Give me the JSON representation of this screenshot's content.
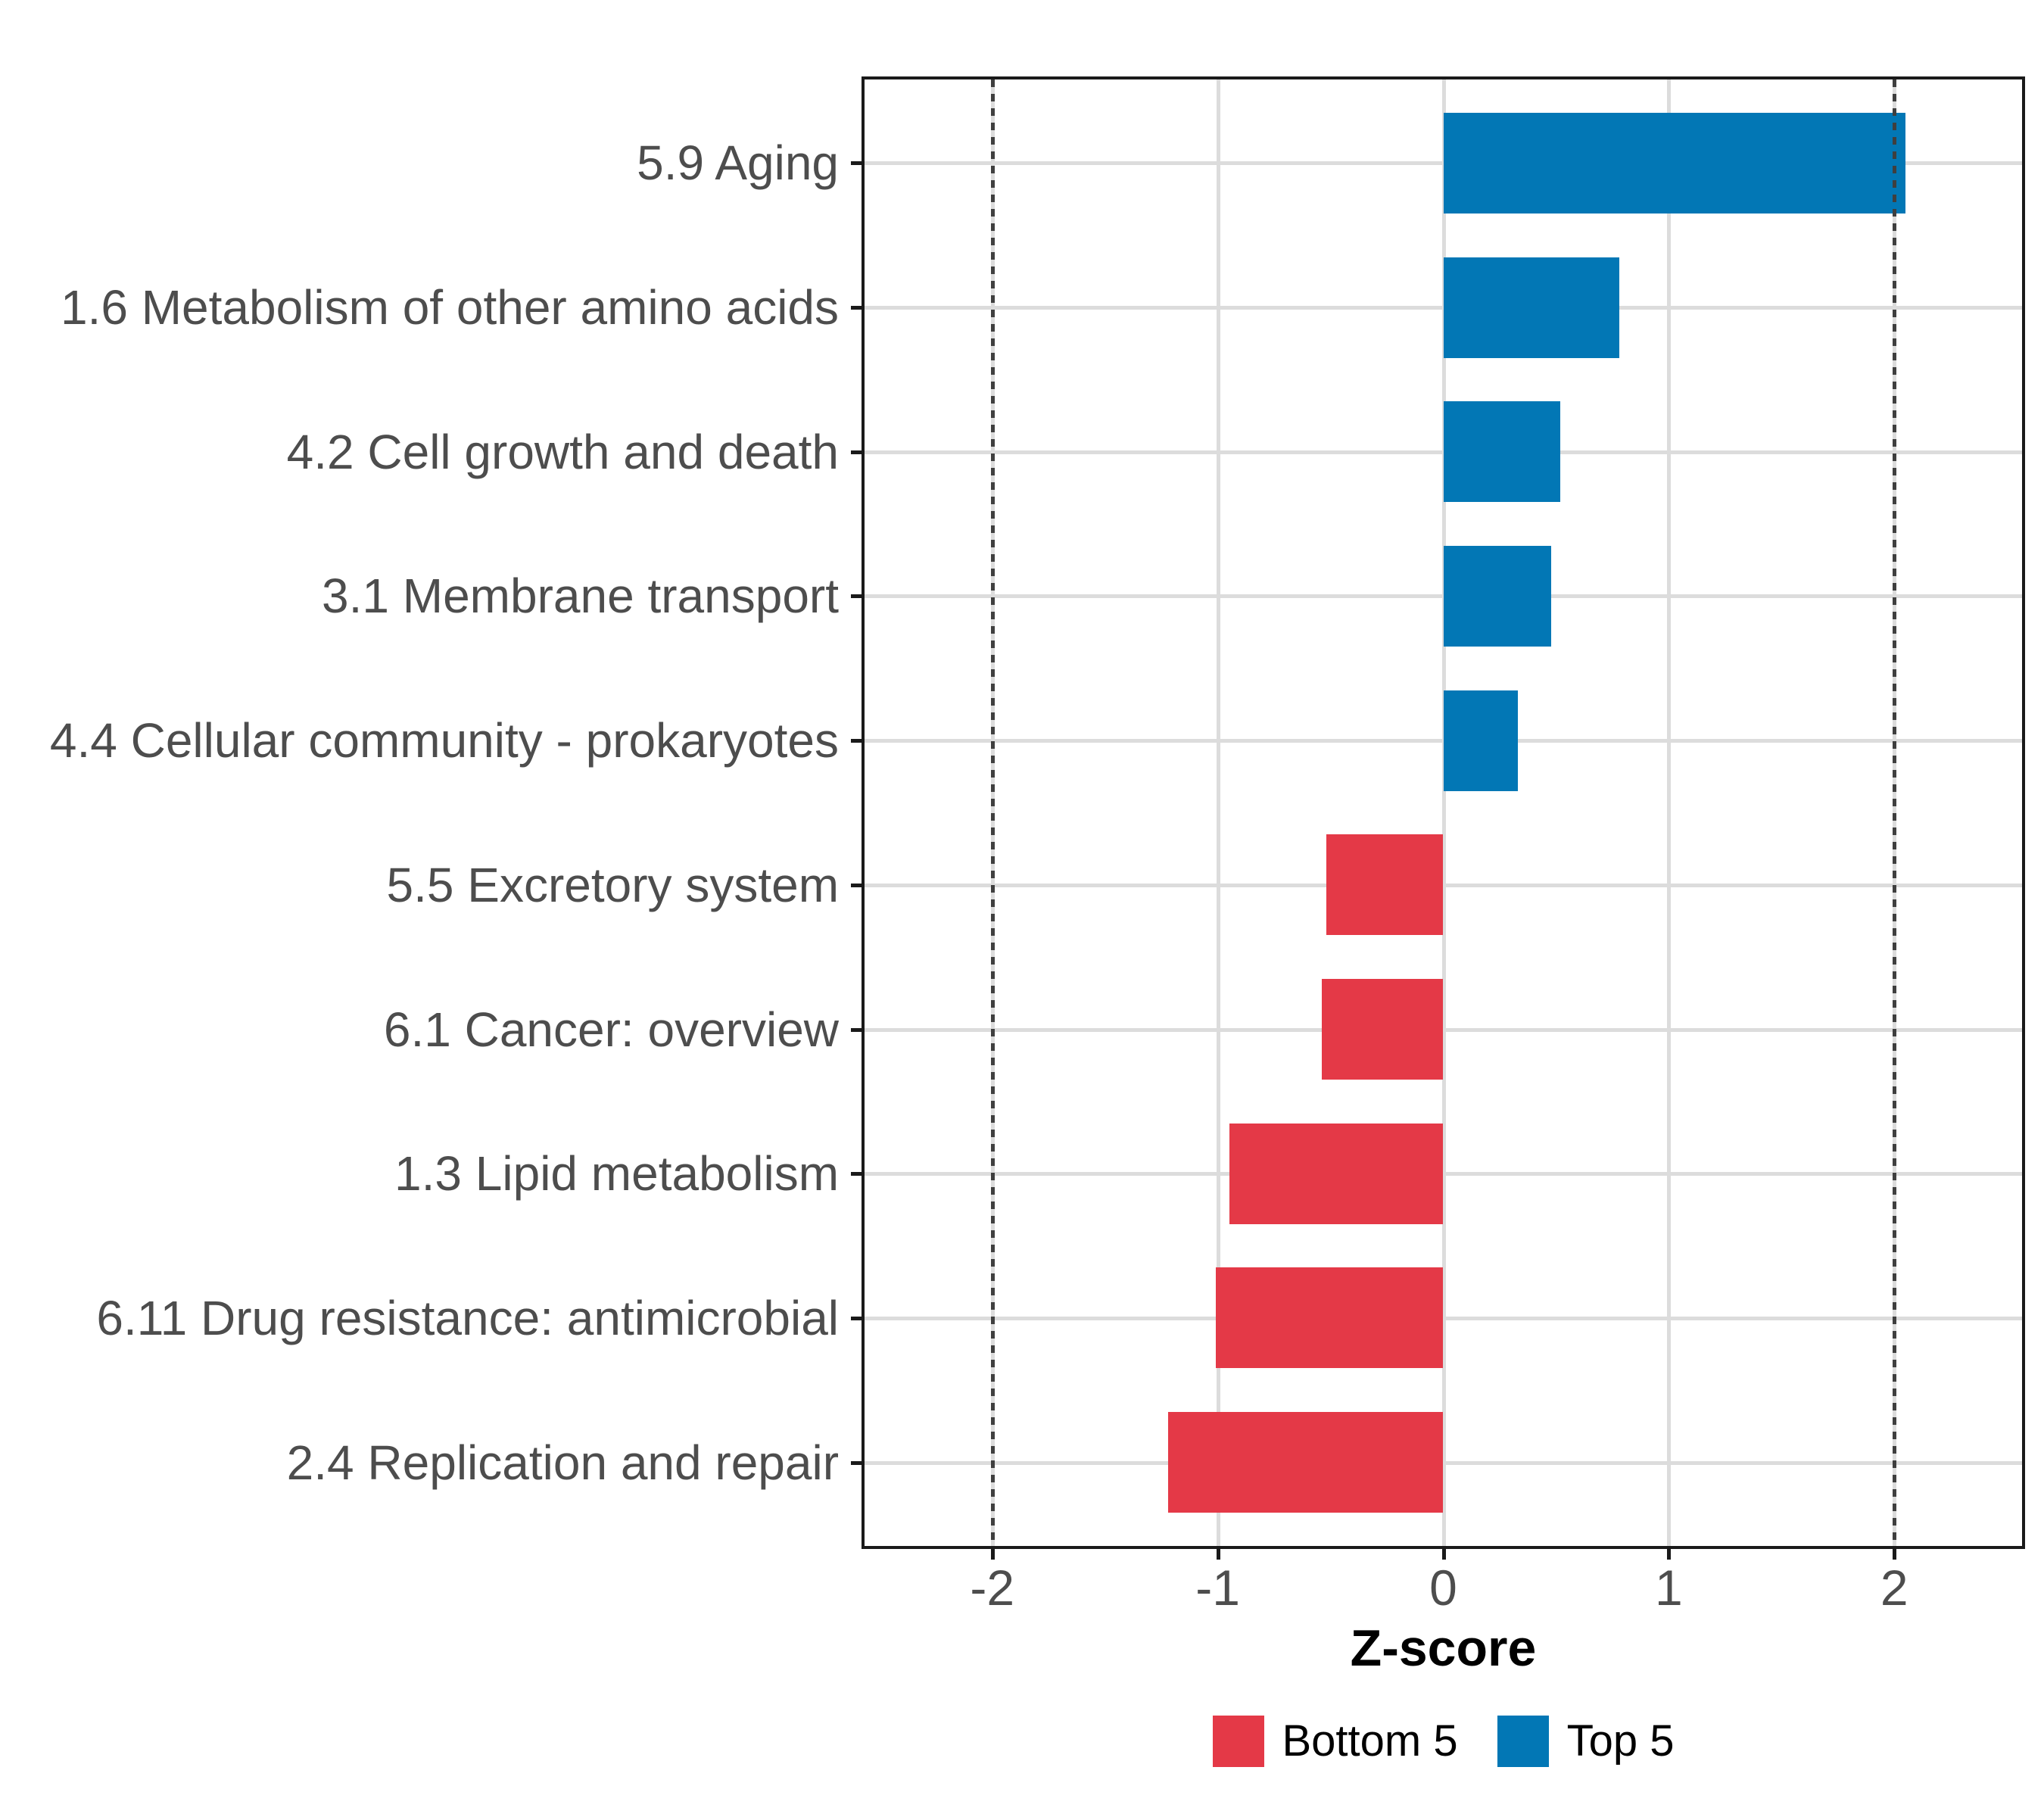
{
  "chart_data": {
    "type": "bar",
    "orientation": "horizontal",
    "title": "",
    "xlabel": "Z-score",
    "ylabel": "",
    "x_ticks": [
      -2,
      -1,
      0,
      1,
      2
    ],
    "x_range": [
      -2.58,
      2.58
    ],
    "reference_lines": [
      -2,
      2
    ],
    "grid": "major gridlines on, white background",
    "legend_position": "bottom-center",
    "categories": [
      "5.9 Aging",
      "1.6 Metabolism of other amino acids",
      "4.2 Cell growth and death",
      "3.1 Membrane transport",
      "4.4 Cellular community - prokaryotes",
      "5.5 Excretory system",
      "6.1 Cancer: overview",
      "1.3 Lipid metabolism",
      "6.11 Drug resistance: antimicrobial",
      "2.4 Replication and repair"
    ],
    "values": [
      2.05,
      0.78,
      0.52,
      0.48,
      0.33,
      -0.52,
      -0.54,
      -0.95,
      -1.01,
      -1.22
    ],
    "bar_groups": [
      "Top 5",
      "Top 5",
      "Top 5",
      "Top 5",
      "Top 5",
      "Bottom 5",
      "Bottom 5",
      "Bottom 5",
      "Bottom 5",
      "Bottom 5"
    ],
    "groups": [
      {
        "name": "Bottom 5",
        "color": "#E43947"
      },
      {
        "name": "Top 5",
        "color": "#0277B5"
      }
    ]
  },
  "colors": {
    "background": "#FFFFFF",
    "panel_border": "#1A1A1A",
    "gridline": "#DCDCDC",
    "reference_line": "#3F3F3F",
    "axis_text": "#4D4D4D",
    "axis_title": "#000000",
    "bar_blue": "#0277B5",
    "bar_red": "#E43947"
  }
}
